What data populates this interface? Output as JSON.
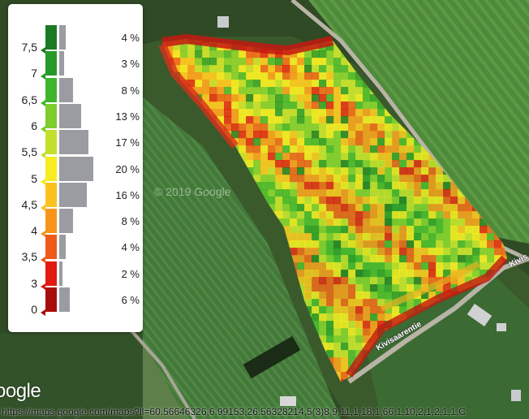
{
  "map": {
    "watermark": "© 2019 Google",
    "logo": "oogle",
    "roads": [
      {
        "name": "Kivisaarentie"
      },
      {
        "name": "Kivis"
      }
    ],
    "status_url": "https://maps.google.com/maps?ll=60.56646326,6.99153,26.56328214,5(3)8,9,11,1,18,1,66,1,10,2,1,2,1,1,C"
  },
  "legend": {
    "bins": [
      {
        "label": "7,5",
        "percent": "4 %",
        "share": 4,
        "color": "#1a7a22"
      },
      {
        "label": "7",
        "percent": "3 %",
        "share": 3,
        "color": "#259a26"
      },
      {
        "label": "6,5",
        "percent": "8 %",
        "share": 8,
        "color": "#3fb52c"
      },
      {
        "label": "6",
        "percent": "13 %",
        "share": 13,
        "color": "#7ccd2d"
      },
      {
        "label": "5,5",
        "percent": "17 %",
        "share": 17,
        "color": "#c4e02c"
      },
      {
        "label": "5",
        "percent": "20 %",
        "share": 20,
        "color": "#f6ec20"
      },
      {
        "label": "4,5",
        "percent": "16 %",
        "share": 16,
        "color": "#fbc21e"
      },
      {
        "label": "4",
        "percent": "8 %",
        "share": 8,
        "color": "#f7951b"
      },
      {
        "label": "3,5",
        "percent": "4 %",
        "share": 4,
        "color": "#ee5a17"
      },
      {
        "label": "3",
        "percent": "2 %",
        "share": 2,
        "color": "#e21a12"
      },
      {
        "label": "0",
        "percent": "6 %",
        "share": 6,
        "color": "#a80d0d"
      }
    ]
  },
  "colors": {
    "forest": "#2f4a25",
    "field_dark": "#3e6f2e",
    "field_light": "#5e8f45",
    "road": "#b8b4a6"
  }
}
